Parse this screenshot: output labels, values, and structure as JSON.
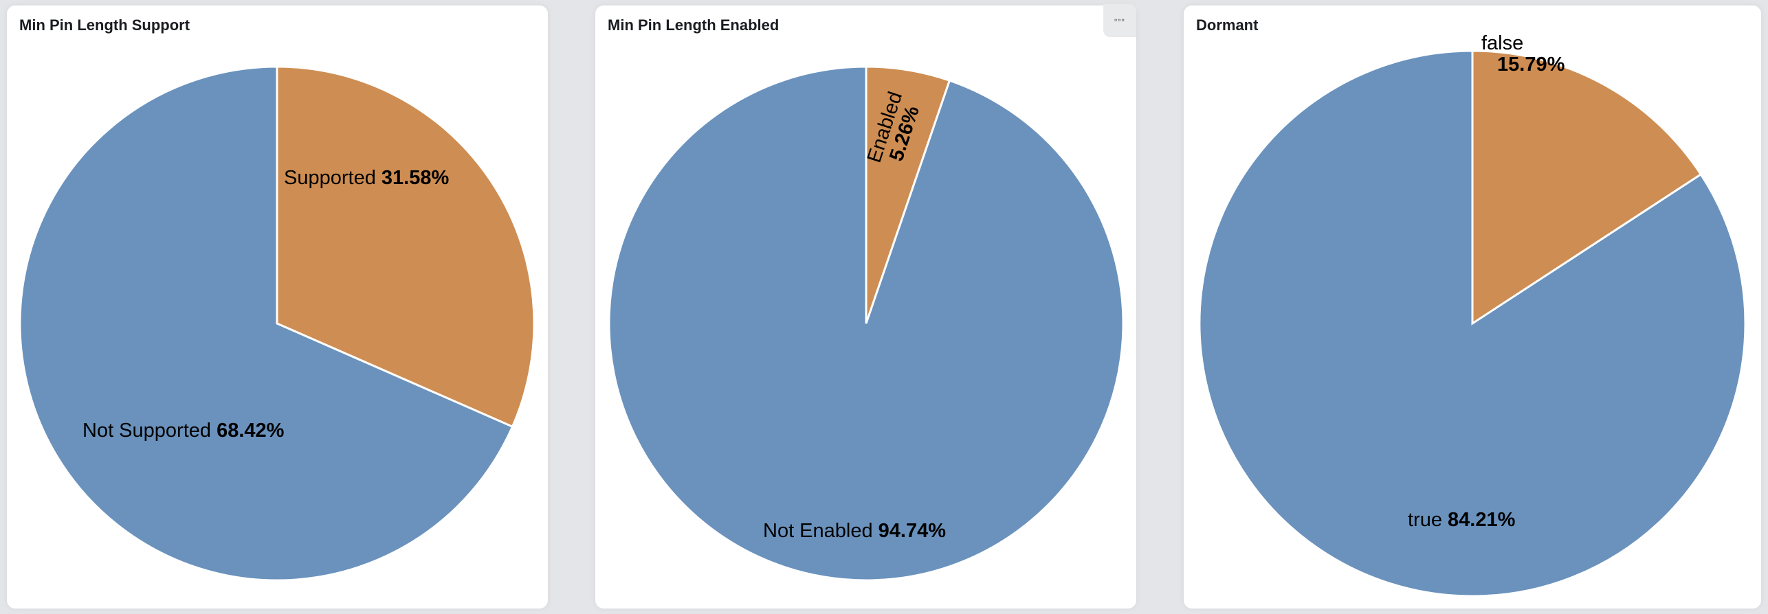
{
  "menu_icon": "ellipsis-icon",
  "colors": {
    "blue": "#6a92bd",
    "orange": "#ce8d52"
  },
  "chart_data": [
    {
      "type": "pie",
      "title": "Min Pin Length Support",
      "slices": [
        {
          "label": "Supported",
          "value": 31.58,
          "pct": "31.58%",
          "color": "#ce8d52"
        },
        {
          "label": "Not Supported",
          "value": 68.42,
          "pct": "68.42%",
          "color": "#6a92bd"
        }
      ]
    },
    {
      "type": "pie",
      "title": "Min Pin Length Enabled",
      "slices": [
        {
          "label": "Enabled",
          "value": 5.26,
          "pct": "5.26%",
          "color": "#ce8d52"
        },
        {
          "label": "Not Enabled",
          "value": 94.74,
          "pct": "94.74%",
          "color": "#6a92bd"
        }
      ]
    },
    {
      "type": "pie",
      "title": "Dormant",
      "slices": [
        {
          "label": "false",
          "value": 15.79,
          "pct": "15.79%",
          "color": "#ce8d52"
        },
        {
          "label": "true",
          "value": 84.21,
          "pct": "84.21%",
          "color": "#6a92bd"
        }
      ]
    }
  ]
}
